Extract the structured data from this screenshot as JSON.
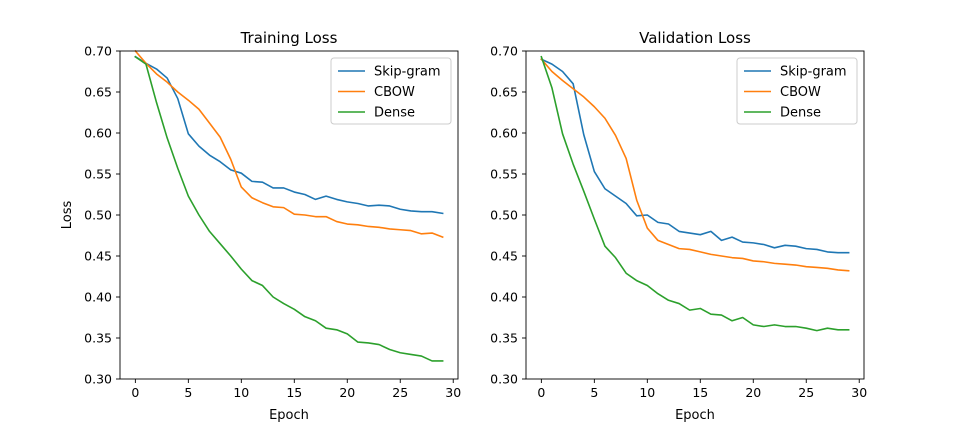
{
  "chart_data": [
    {
      "type": "line",
      "title": "Training Loss",
      "xlabel": "Epoch",
      "ylabel": "Loss",
      "xlim": [
        -1.45,
        30.45
      ],
      "ylim": [
        0.3,
        0.7
      ],
      "xticks": [
        0,
        5,
        10,
        15,
        20,
        25,
        30
      ],
      "yticks": [
        0.3,
        0.35,
        0.4,
        0.45,
        0.5,
        0.55,
        0.6,
        0.65,
        0.7
      ],
      "ytick_labels": [
        "0.30",
        "0.35",
        "0.40",
        "0.45",
        "0.50",
        "0.55",
        "0.60",
        "0.65",
        "0.70"
      ],
      "legend_position": "top-right",
      "grid": false,
      "x": [
        0,
        1,
        2,
        3,
        4,
        5,
        6,
        7,
        8,
        9,
        10,
        11,
        12,
        13,
        14,
        15,
        16,
        17,
        18,
        19,
        20,
        21,
        22,
        23,
        24,
        25,
        26,
        27,
        28,
        29
      ],
      "series": [
        {
          "name": "Skip-gram",
          "color": "#1f77b4",
          "values": [
            0.693,
            0.685,
            0.678,
            0.667,
            0.642,
            0.599,
            0.584,
            0.573,
            0.565,
            0.555,
            0.551,
            0.541,
            0.54,
            0.533,
            0.533,
            0.528,
            0.525,
            0.519,
            0.523,
            0.519,
            0.516,
            0.514,
            0.511,
            0.512,
            0.511,
            0.507,
            0.505,
            0.504,
            0.504,
            0.502
          ]
        },
        {
          "name": "CBOW",
          "color": "#ff7f0e",
          "values": [
            0.7,
            0.685,
            0.672,
            0.662,
            0.65,
            0.64,
            0.629,
            0.612,
            0.595,
            0.568,
            0.534,
            0.521,
            0.515,
            0.51,
            0.509,
            0.501,
            0.5,
            0.498,
            0.498,
            0.492,
            0.489,
            0.488,
            0.486,
            0.485,
            0.483,
            0.482,
            0.481,
            0.477,
            0.478,
            0.473
          ]
        },
        {
          "name": "Dense",
          "color": "#2ca02c",
          "values": [
            0.693,
            0.684,
            0.637,
            0.594,
            0.557,
            0.523,
            0.5,
            0.48,
            0.465,
            0.45,
            0.434,
            0.42,
            0.414,
            0.4,
            0.392,
            0.385,
            0.376,
            0.371,
            0.362,
            0.36,
            0.355,
            0.345,
            0.344,
            0.342,
            0.336,
            0.332,
            0.33,
            0.328,
            0.322,
            0.322
          ]
        }
      ]
    },
    {
      "type": "line",
      "title": "Validation Loss",
      "xlabel": "Epoch",
      "ylabel": "",
      "xlim": [
        -1.45,
        30.45
      ],
      "ylim": [
        0.3,
        0.7
      ],
      "xticks": [
        0,
        5,
        10,
        15,
        20,
        25,
        30
      ],
      "yticks": [
        0.3,
        0.35,
        0.4,
        0.45,
        0.5,
        0.55,
        0.6,
        0.65,
        0.7
      ],
      "ytick_labels": [
        "0.30",
        "0.35",
        "0.40",
        "0.45",
        "0.50",
        "0.55",
        "0.60",
        "0.65",
        "0.70"
      ],
      "legend_position": "top-right",
      "grid": false,
      "x": [
        0,
        1,
        2,
        3,
        4,
        5,
        6,
        7,
        8,
        9,
        10,
        11,
        12,
        13,
        14,
        15,
        16,
        17,
        18,
        19,
        20,
        21,
        22,
        23,
        24,
        25,
        26,
        27,
        28,
        29
      ],
      "series": [
        {
          "name": "Skip-gram",
          "color": "#1f77b4",
          "values": [
            0.69,
            0.684,
            0.675,
            0.66,
            0.598,
            0.553,
            0.532,
            0.523,
            0.514,
            0.499,
            0.5,
            0.491,
            0.489,
            0.48,
            0.478,
            0.476,
            0.48,
            0.469,
            0.473,
            0.467,
            0.466,
            0.464,
            0.46,
            0.463,
            0.462,
            0.459,
            0.458,
            0.455,
            0.454,
            0.454
          ]
        },
        {
          "name": "CBOW",
          "color": "#ff7f0e",
          "values": [
            0.69,
            0.675,
            0.664,
            0.654,
            0.644,
            0.632,
            0.618,
            0.597,
            0.569,
            0.518,
            0.484,
            0.469,
            0.464,
            0.459,
            0.458,
            0.455,
            0.452,
            0.45,
            0.448,
            0.447,
            0.444,
            0.443,
            0.441,
            0.44,
            0.439,
            0.437,
            0.436,
            0.435,
            0.433,
            0.432
          ]
        },
        {
          "name": "Dense",
          "color": "#2ca02c",
          "values": [
            0.693,
            0.655,
            0.599,
            0.562,
            0.529,
            0.495,
            0.462,
            0.448,
            0.429,
            0.42,
            0.414,
            0.404,
            0.396,
            0.392,
            0.384,
            0.386,
            0.379,
            0.378,
            0.371,
            0.375,
            0.366,
            0.364,
            0.366,
            0.364,
            0.364,
            0.362,
            0.359,
            0.362,
            0.36,
            0.36
          ]
        }
      ]
    }
  ]
}
